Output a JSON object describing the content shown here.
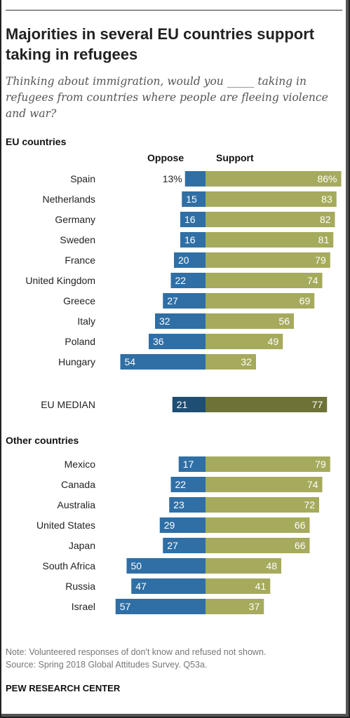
{
  "title": "Majorities in several EU countries support taking in refugees",
  "subtitle": "Thinking about immigration, would you _____ taking in refugees from countries where people are fleeing violence and war?",
  "note": "Note: Volunteered responses of don't know and refused not shown.",
  "source": "Source: Spring 2018 Global Attitudes Survey. Q53a.",
  "brand": "PEW RESEARCH CENTER",
  "section_eu": "EU countries",
  "section_other": "Other countries",
  "col_oppose": "Oppose",
  "col_support": "Support",
  "colors": {
    "oppose": "#2f6fa5",
    "support": "#a6aa5c",
    "median_oppose": "#1e4e73",
    "median_support": "#6e7236"
  },
  "chart_data": {
    "type": "bar",
    "orientation": "horizontal-diverging",
    "series": [
      {
        "name": "Oppose"
      },
      {
        "name": "Support"
      }
    ],
    "groups": [
      {
        "name": "EU countries",
        "rows": [
          {
            "label": "Spain",
            "oppose": 13,
            "support": 86,
            "oppose_text": "13%",
            "support_text": "86%"
          },
          {
            "label": "Netherlands",
            "oppose": 15,
            "support": 83,
            "oppose_text": "15",
            "support_text": "83"
          },
          {
            "label": "Germany",
            "oppose": 16,
            "support": 82,
            "oppose_text": "16",
            "support_text": "82"
          },
          {
            "label": "Sweden",
            "oppose": 16,
            "support": 81,
            "oppose_text": "16",
            "support_text": "81"
          },
          {
            "label": "France",
            "oppose": 20,
            "support": 79,
            "oppose_text": "20",
            "support_text": "79"
          },
          {
            "label": "United Kingdom",
            "oppose": 22,
            "support": 74,
            "oppose_text": "22",
            "support_text": "74"
          },
          {
            "label": "Greece",
            "oppose": 27,
            "support": 69,
            "oppose_text": "27",
            "support_text": "69"
          },
          {
            "label": "Italy",
            "oppose": 32,
            "support": 56,
            "oppose_text": "32",
            "support_text": "56"
          },
          {
            "label": "Poland",
            "oppose": 36,
            "support": 49,
            "oppose_text": "36",
            "support_text": "49"
          },
          {
            "label": "Hungary",
            "oppose": 54,
            "support": 32,
            "oppose_text": "54",
            "support_text": "32"
          }
        ]
      },
      {
        "name": "EU MEDIAN",
        "median": true,
        "rows": [
          {
            "label": "EU MEDIAN",
            "oppose": 21,
            "support": 77,
            "oppose_text": "21",
            "support_text": "77"
          }
        ]
      },
      {
        "name": "Other countries",
        "rows": [
          {
            "label": "Mexico",
            "oppose": 17,
            "support": 79,
            "oppose_text": "17",
            "support_text": "79"
          },
          {
            "label": "Canada",
            "oppose": 22,
            "support": 74,
            "oppose_text": "22",
            "support_text": "74"
          },
          {
            "label": "Australia",
            "oppose": 23,
            "support": 72,
            "oppose_text": "23",
            "support_text": "72"
          },
          {
            "label": "United States",
            "oppose": 29,
            "support": 66,
            "oppose_text": "29",
            "support_text": "66"
          },
          {
            "label": "Japan",
            "oppose": 27,
            "support": 66,
            "oppose_text": "27",
            "support_text": "66"
          },
          {
            "label": "South Africa",
            "oppose": 50,
            "support": 48,
            "oppose_text": "50",
            "support_text": "48"
          },
          {
            "label": "Russia",
            "oppose": 47,
            "support": 41,
            "oppose_text": "47",
            "support_text": "41"
          },
          {
            "label": "Israel",
            "oppose": 57,
            "support": 37,
            "oppose_text": "57",
            "support_text": "37"
          }
        ]
      }
    ]
  }
}
